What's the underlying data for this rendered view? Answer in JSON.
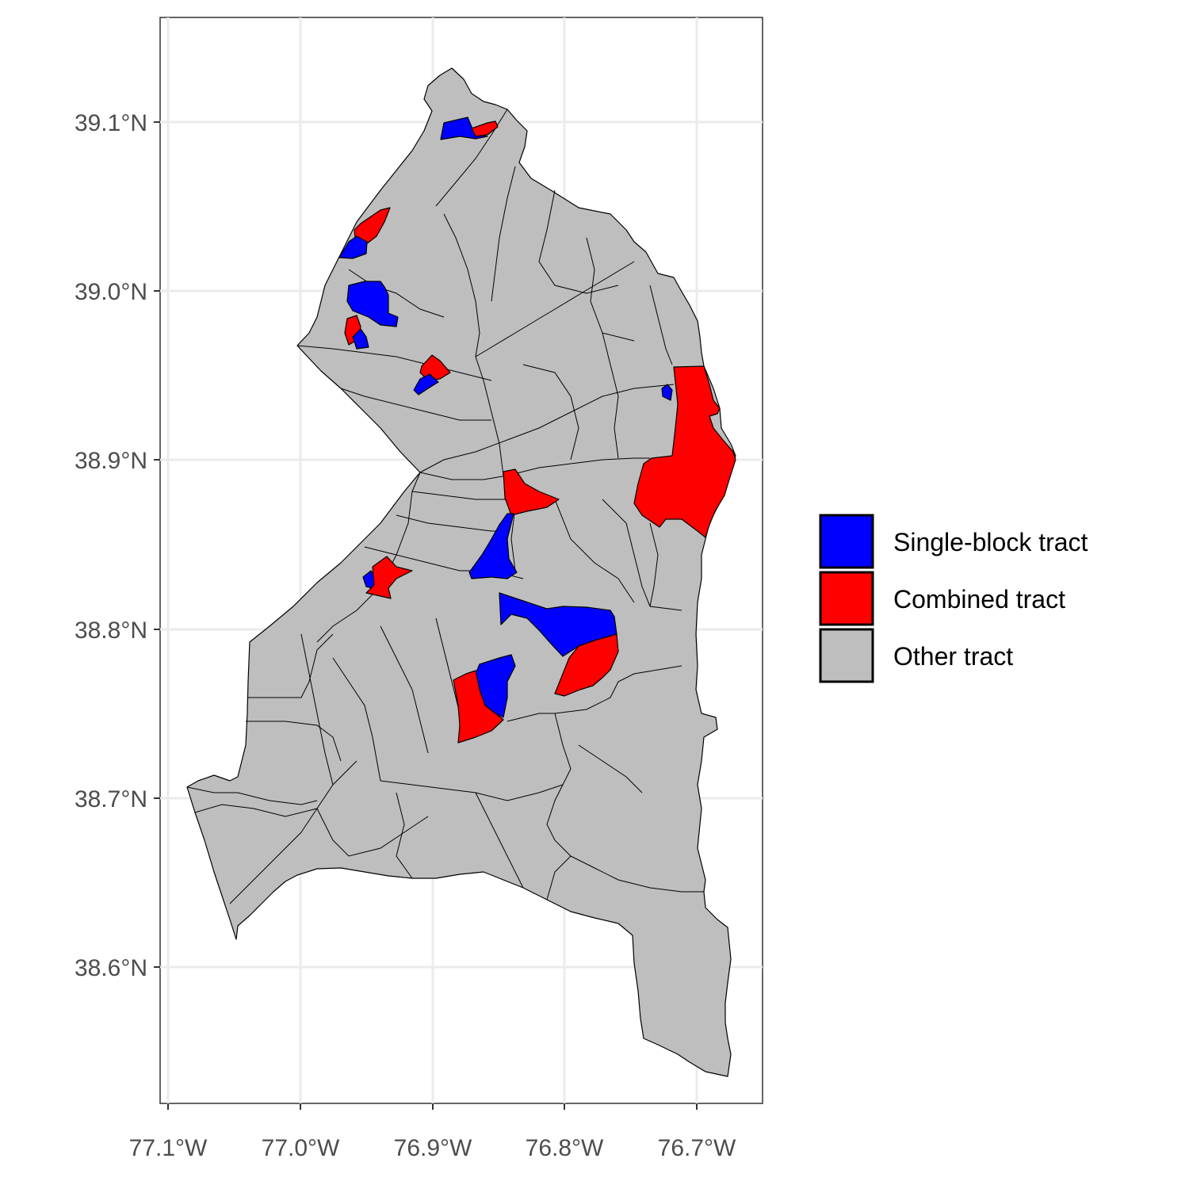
{
  "map": {
    "x_ticks": [
      "77.1°W",
      "77.0°W",
      "76.9°W",
      "76.8°W",
      "76.7°W"
    ],
    "y_ticks": [
      "39.1°N",
      "39.0°N",
      "38.9°N",
      "38.8°N",
      "38.7°N",
      "38.6°N"
    ],
    "grid": true,
    "colors": {
      "single": "#0000ff",
      "combined": "#ff0000",
      "other": "#bebebe"
    }
  },
  "legend": {
    "placement": "right",
    "items": [
      {
        "label": "Single-block tract",
        "color": "#0000ff"
      },
      {
        "label": "Combined tract",
        "color": "#ff0000"
      },
      {
        "label": "Other tract",
        "color": "#bebebe"
      }
    ]
  }
}
